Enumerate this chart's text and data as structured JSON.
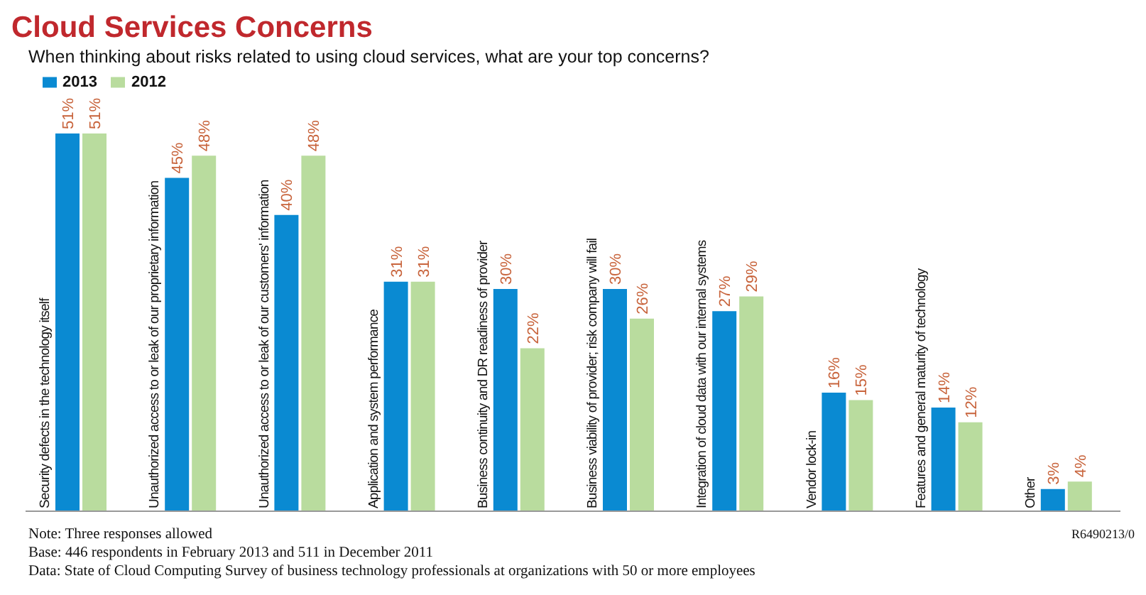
{
  "chart_data": {
    "type": "bar",
    "title": "Cloud Services Concerns",
    "subtitle": "When thinking about risks related to using cloud services, what are your top concerns?",
    "categories": [
      "Security defects in the technology itself",
      "Unauthorized access to or leak of our proprietary information",
      "Unauthorized access to or leak of our customers' information",
      "Application and system performance",
      "Business continuity and DR readiness of provider",
      "Business viability of provider; risk company will fail",
      "Integration of cloud data with our internal systems",
      "Vendor lock-in",
      "Features and general maturity of technology",
      "Other"
    ],
    "series": [
      {
        "name": "2013",
        "color": "#0a8ad2",
        "values": [
          51,
          45,
          40,
          31,
          30,
          30,
          27,
          16,
          14,
          3
        ],
        "value_labels": [
          "51%",
          "45%",
          "40%",
          "31%",
          "30%",
          "30%",
          "27%",
          "16%",
          "14%",
          "3%"
        ]
      },
      {
        "name": "2012",
        "color": "#b9dc9e",
        "values": [
          51,
          48,
          48,
          31,
          22,
          26,
          29,
          15,
          12,
          4
        ],
        "value_labels": [
          "51%",
          "48%",
          "48%",
          "31%",
          "22%",
          "26%",
          "29%",
          "15%",
          "12%",
          "4%"
        ]
      }
    ],
    "tick_labels": "x",
    "legend": "top left",
    "grid": false,
    "annotations": [
      "Note: Three responses allowed",
      "R6490213/0",
      "Base: 446 respondents in February 2013 and 511 in December 2011",
      "Data: State of Cloud Computing Survey of business technology professionals at organizations with 50 or more employees"
    ]
  }
}
